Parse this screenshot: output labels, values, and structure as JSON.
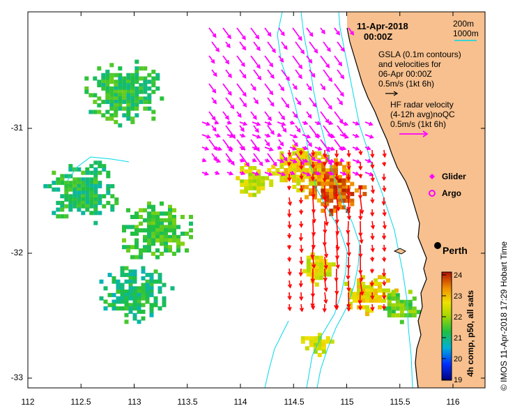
{
  "title": {
    "date": "11-Apr-2018",
    "time": "00:00Z"
  },
  "contour_legend": {
    "line1": "200m",
    "line2": "1000m"
  },
  "gsla": {
    "line1": "GSLA (0.1m contours)",
    "line2": "and velocities for",
    "line3": "06-Apr 00:00Z",
    "line4": "0.5m/s (1kt 6h)"
  },
  "hf_radar": {
    "line1": "HF radar velocity",
    "line2": "(4-12h avg)noQC",
    "line3": "0.5m/s (1kt 6h)"
  },
  "symbols": {
    "glider": "Glider",
    "argo": "Argo"
  },
  "city": "Perth",
  "colorbar": {
    "title": "4h comp, p50, all sats",
    "ticks": [
      "19",
      "20",
      "21",
      "22",
      "23",
      "24"
    ]
  },
  "credit": "© IMOS 11-Apr-2018 17:29 Hobart Time",
  "axes": {
    "x_ticks": [
      "112",
      "112.5",
      "113",
      "113.5",
      "114",
      "114.5",
      "115",
      "115.5",
      "116"
    ],
    "y_ticks": [
      "-31",
      "-32",
      "-33"
    ]
  },
  "colors": {
    "land": "#f7c08e",
    "contour": "#00d8e8",
    "hf_arrow": "#ff00ff",
    "gsla_arrow": "#ff0000",
    "coast": "#000000"
  },
  "chart_data": {
    "type": "heatmap",
    "title": "",
    "xlabel": "",
    "ylabel": "",
    "xlim": [
      112,
      116.3
    ],
    "ylim": [
      -33.1,
      -30.1
    ],
    "x_ticks": [
      112,
      112.5,
      113,
      113.5,
      114,
      114.5,
      115,
      115.5,
      116
    ],
    "y_ticks": [
      -31,
      -32,
      -33
    ],
    "value_range": [
      19,
      24.3
    ],
    "colorbar_label": "4h comp, p50, all sats",
    "sst_patches": [
      {
        "lon": 114.8,
        "lat": -31.4,
        "value": 23.5
      },
      {
        "lon": 114.9,
        "lat": -31.5,
        "value": 23.8
      },
      {
        "lon": 114.5,
        "lat": -31.3,
        "value": 22.8
      },
      {
        "lon": 114.1,
        "lat": -31.4,
        "value": 22.5
      },
      {
        "lon": 115.2,
        "lat": -32.3,
        "value": 22.8
      },
      {
        "lon": 114.7,
        "lat": -32.1,
        "value": 22.6
      },
      {
        "lon": 114.7,
        "lat": -32.7,
        "value": 22.5
      },
      {
        "lon": 113.2,
        "lat": -31.8,
        "value": 21.6
      },
      {
        "lon": 112.9,
        "lat": -30.7,
        "value": 21.4
      },
      {
        "lon": 112.5,
        "lat": -31.5,
        "value": 21.3
      },
      {
        "lon": 113.0,
        "lat": -32.3,
        "value": 21.2
      },
      {
        "lon": 115.5,
        "lat": -32.4,
        "value": 21.8
      }
    ]
  }
}
